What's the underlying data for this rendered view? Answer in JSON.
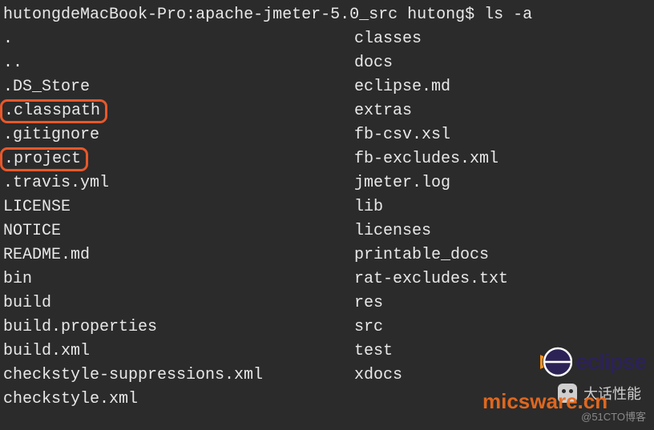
{
  "prompt": {
    "host": "hutongdeMacBook-Pro",
    "path": "apache-jmeter-5.0_src",
    "user": "hutong",
    "symbol": "$",
    "command": "ls -a"
  },
  "listing": {
    "left": [
      {
        "name": ".",
        "highlighted": false
      },
      {
        "name": "..",
        "highlighted": false
      },
      {
        "name": ".DS_Store",
        "highlighted": false
      },
      {
        "name": ".classpath",
        "highlighted": true
      },
      {
        "name": ".gitignore",
        "highlighted": false
      },
      {
        "name": ".project",
        "highlighted": true
      },
      {
        "name": ".travis.yml",
        "highlighted": false
      },
      {
        "name": "LICENSE",
        "highlighted": false
      },
      {
        "name": "NOTICE",
        "highlighted": false
      },
      {
        "name": "README.md",
        "highlighted": false
      },
      {
        "name": "bin",
        "highlighted": false
      },
      {
        "name": "build",
        "highlighted": false
      },
      {
        "name": "build.properties",
        "highlighted": false
      },
      {
        "name": "build.xml",
        "highlighted": false
      },
      {
        "name": "checkstyle-suppressions.xml",
        "highlighted": false
      },
      {
        "name": "checkstyle.xml",
        "highlighted": false
      }
    ],
    "right": [
      {
        "name": "classes"
      },
      {
        "name": "docs"
      },
      {
        "name": "eclipse.md"
      },
      {
        "name": "extras"
      },
      {
        "name": "fb-csv.xsl"
      },
      {
        "name": "fb-excludes.xml"
      },
      {
        "name": "jmeter.log"
      },
      {
        "name": "lib"
      },
      {
        "name": "licenses"
      },
      {
        "name": "printable_docs"
      },
      {
        "name": "rat-excludes.txt"
      },
      {
        "name": "res"
      },
      {
        "name": "src"
      },
      {
        "name": "test"
      },
      {
        "name": "xdocs"
      }
    ]
  },
  "watermarks": {
    "eclipse_text": "eclipse",
    "wechat_label": "大话性能",
    "mics": "micsware.cn",
    "cto": "@51CTO博客"
  },
  "colors": {
    "bg": "#2b2b2b",
    "fg": "#e8e8e8",
    "highlight_border": "#e8582a",
    "mics_color": "#e86b1f",
    "eclipse_purple": "#2c2255",
    "eclipse_orange": "#f7941e"
  }
}
